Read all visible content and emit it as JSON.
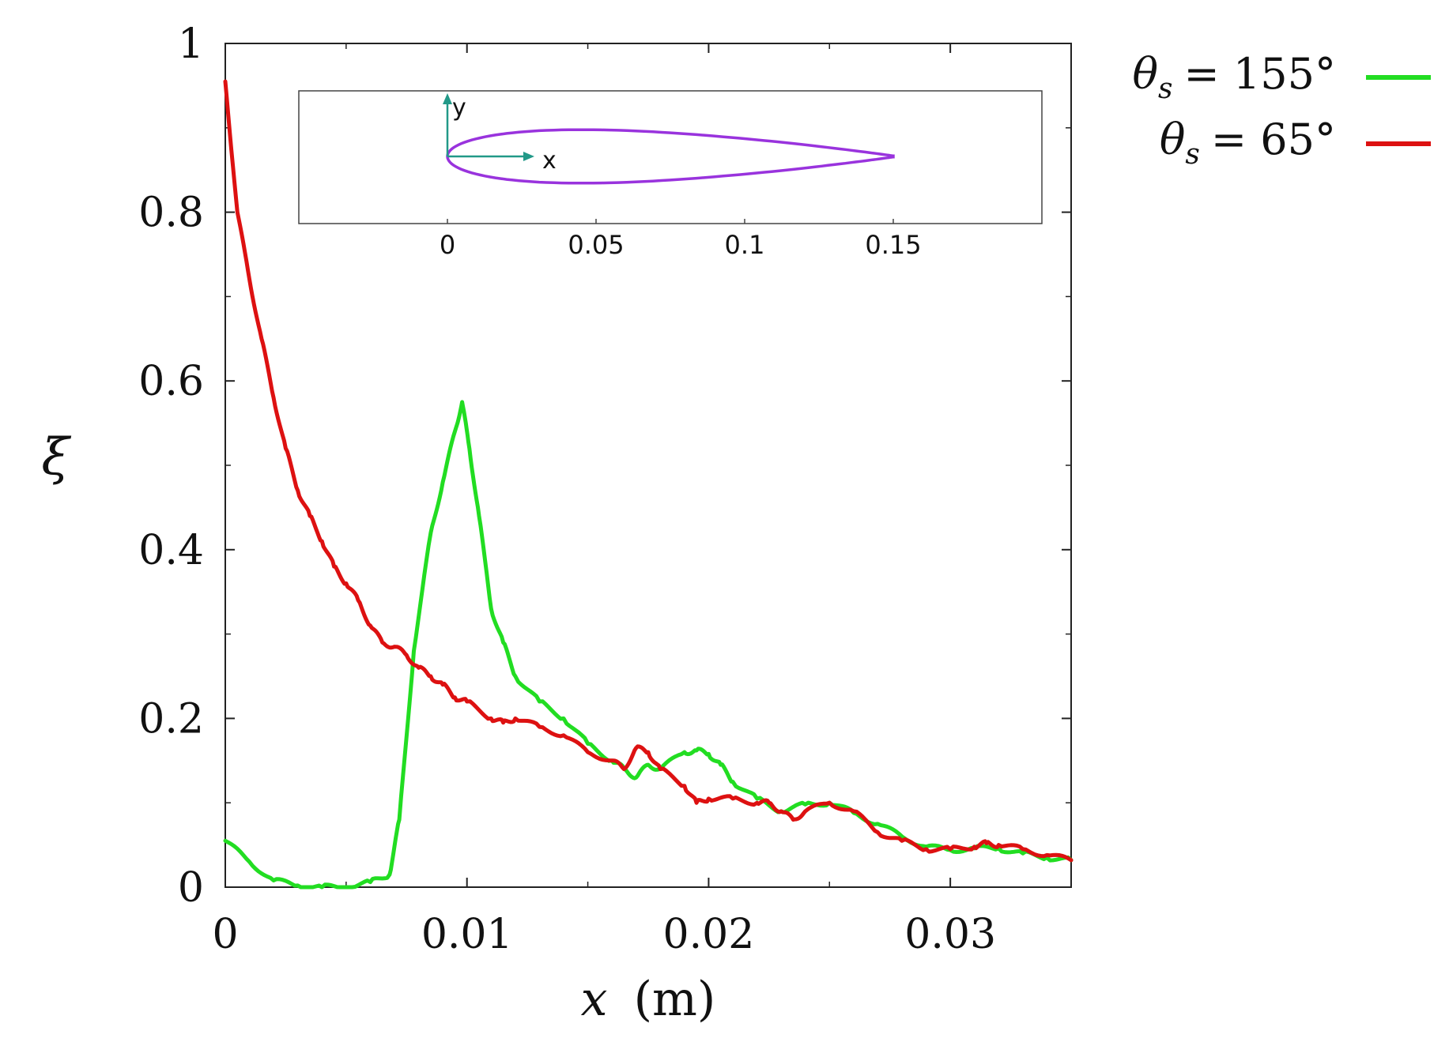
{
  "chart_data": {
    "type": "line",
    "title": "",
    "xlabel": "x (m)",
    "xlabel_var": "x",
    "xlabel_unit": "(m)",
    "ylabel": "ξ",
    "xlim": [
      0,
      0.035
    ],
    "ylim": [
      0,
      1
    ],
    "xticks": [
      0,
      0.01,
      0.02,
      0.03
    ],
    "xtick_labels": [
      "0",
      "0.01",
      "0.02",
      "0.03"
    ],
    "yticks": [
      0,
      0.2,
      0.4,
      0.6,
      0.8,
      1
    ],
    "ytick_labels": [
      "0",
      "0.2",
      "0.4",
      "0.6",
      "0.8",
      "1"
    ],
    "grid": false,
    "legend_position": "outside-top-right",
    "series": [
      {
        "name": "θs = 155°",
        "legend_symbol": "θ",
        "legend_subscript": "s",
        "legend_value": "= 155°",
        "color": "#22dd22",
        "x": [
          0,
          0.001,
          0.002,
          0.003,
          0.004,
          0.005,
          0.006,
          0.0068,
          0.0072,
          0.0078,
          0.0085,
          0.009,
          0.0095,
          0.0098,
          0.0101,
          0.0105,
          0.011,
          0.0115,
          0.012,
          0.013,
          0.014,
          0.015,
          0.016,
          0.0165,
          0.017,
          0.0175,
          0.018,
          0.019,
          0.0195,
          0.02,
          0.0205,
          0.021,
          0.022,
          0.023,
          0.024,
          0.025,
          0.026,
          0.027,
          0.028,
          0.029,
          0.03,
          0.031,
          0.032,
          0.033,
          0.034,
          0.035
        ],
        "y": [
          0.055,
          0.03,
          0.008,
          0.002,
          0.0,
          0.0,
          0.006,
          0.015,
          0.08,
          0.28,
          0.42,
          0.48,
          0.54,
          0.575,
          0.52,
          0.44,
          0.33,
          0.29,
          0.25,
          0.22,
          0.2,
          0.17,
          0.15,
          0.14,
          0.13,
          0.145,
          0.14,
          0.16,
          0.162,
          0.158,
          0.145,
          0.125,
          0.105,
          0.09,
          0.098,
          0.1,
          0.088,
          0.075,
          0.06,
          0.048,
          0.044,
          0.046,
          0.046,
          0.04,
          0.035,
          0.032
        ]
      },
      {
        "name": "θs = 65°",
        "legend_symbol": "θ",
        "legend_subscript": "s",
        "legend_value": "= 65°",
        "color": "#dd1111",
        "x": [
          0,
          0.0005,
          0.001,
          0.0015,
          0.002,
          0.0025,
          0.003,
          0.0035,
          0.004,
          0.0045,
          0.005,
          0.0055,
          0.006,
          0.0065,
          0.007,
          0.0075,
          0.008,
          0.0085,
          0.009,
          0.0095,
          0.01,
          0.011,
          0.0115,
          0.012,
          0.013,
          0.014,
          0.015,
          0.016,
          0.0165,
          0.017,
          0.0175,
          0.018,
          0.019,
          0.0195,
          0.02,
          0.021,
          0.022,
          0.0225,
          0.023,
          0.0235,
          0.024,
          0.025,
          0.026,
          0.027,
          0.028,
          0.029,
          0.03,
          0.031,
          0.0315,
          0.032,
          0.033,
          0.034,
          0.035
        ],
        "y": [
          0.955,
          0.8,
          0.72,
          0.65,
          0.58,
          0.52,
          0.47,
          0.44,
          0.41,
          0.38,
          0.36,
          0.34,
          0.31,
          0.29,
          0.285,
          0.275,
          0.26,
          0.25,
          0.24,
          0.225,
          0.22,
          0.2,
          0.195,
          0.2,
          0.19,
          0.18,
          0.16,
          0.15,
          0.14,
          0.165,
          0.16,
          0.14,
          0.12,
          0.1,
          0.105,
          0.105,
          0.1,
          0.1,
          0.09,
          0.08,
          0.09,
          0.1,
          0.09,
          0.065,
          0.055,
          0.045,
          0.045,
          0.048,
          0.052,
          0.05,
          0.045,
          0.038,
          0.032
        ]
      }
    ],
    "inset": {
      "description": "airfoil profile outline",
      "color": "#9933dd",
      "axis_color": "#229988",
      "xlim": [
        -0.05,
        0.2
      ],
      "xticks": [
        0,
        0.05,
        0.1,
        0.15
      ],
      "xtick_labels": [
        "0",
        "0.05",
        "0.1",
        "0.15"
      ],
      "x_axis_letter": "x",
      "y_axis_letter": "y",
      "chord": 0.15,
      "max_thickness_ratio": 0.12
    }
  }
}
